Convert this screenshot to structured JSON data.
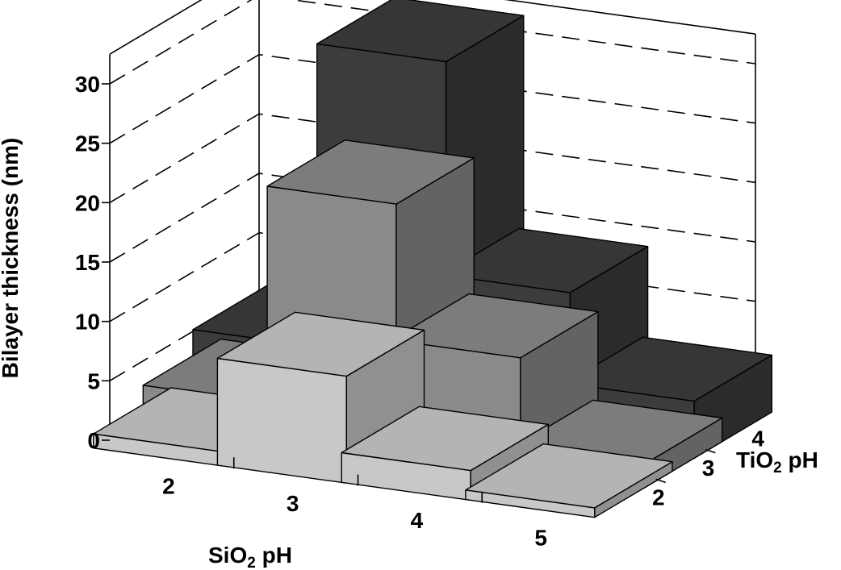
{
  "chart_data": {
    "type": "bar3d",
    "ylabel": "Bilayer thickness (nm)",
    "xlabel": {
      "pre": "SiO",
      "sub": "2",
      "post": " pH"
    },
    "zlabel": {
      "pre": "TiO",
      "sub": "2",
      "post": " pH"
    },
    "x_categories": [
      "2",
      "3",
      "4",
      "5"
    ],
    "z_categories": [
      "2",
      "3",
      "4"
    ],
    "yticks": [
      "0",
      "5",
      "10",
      "15",
      "20",
      "25",
      "30"
    ],
    "ylim": [
      0,
      30
    ],
    "grid": true,
    "colors": {
      "2": "#c8c8c8",
      "3": "#8a8a8a",
      "4": "#3c3c3c"
    },
    "series": [
      {
        "name": "2",
        "values": [
          1.2,
          9.0,
          2.5,
          0.8
        ]
      },
      {
        "name": "3",
        "values": [
          2.8,
          21.0,
          9.5,
          2.0
        ]
      },
      {
        "name": "4",
        "values": [
          5.0,
          30.5,
          12.5,
          4.8
        ]
      }
    ]
  }
}
